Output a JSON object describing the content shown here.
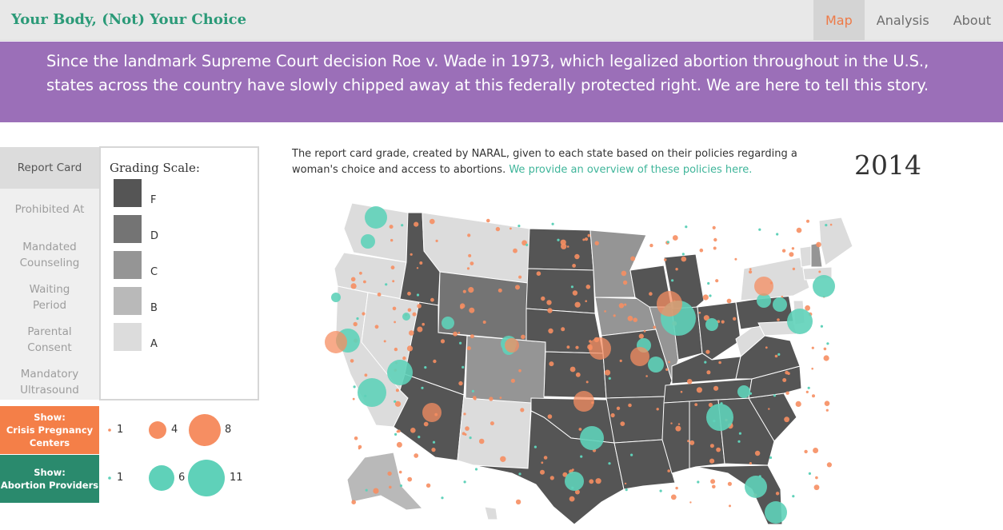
{
  "header": {
    "brand": "Your Body, (Not) Your Choice",
    "nav": [
      {
        "label": "Map",
        "active": true
      },
      {
        "label": "Analysis",
        "active": false
      },
      {
        "label": "About",
        "active": false
      }
    ]
  },
  "banner": {
    "line1": "Since the landmark Supreme Court decision Roe v. Wade in 1973, which legalized abortion throughout in the U.S.,",
    "line2": "states across the country have slowly chipped away at this federally protected right. We are here to tell this story."
  },
  "tabs": [
    {
      "line1": "Report Card",
      "line2": "",
      "active": true
    },
    {
      "line1": "Prohibited At",
      "line2": "",
      "active": false
    },
    {
      "line1": "Mandated",
      "line2": "Counseling",
      "active": false
    },
    {
      "line1": "Waiting",
      "line2": "Period",
      "active": false
    },
    {
      "line1": "Parental",
      "line2": "Consent",
      "active": false
    },
    {
      "line1": "Mandatory",
      "line2": "Ultrasound",
      "active": false
    }
  ],
  "grading_scale": {
    "title": "Grading Scale:",
    "grades": [
      {
        "label": "F",
        "color": "#555555"
      },
      {
        "label": "D",
        "color": "#747474"
      },
      {
        "label": "C",
        "color": "#959595"
      },
      {
        "label": "B",
        "color": "#b9b9b9"
      },
      {
        "label": "A",
        "color": "#dcdcdc"
      }
    ]
  },
  "toggles": {
    "cpc": {
      "line1": "Show:",
      "line2": "Crisis Pregnancy",
      "line3": "Centers",
      "color": "#f47f48"
    },
    "ap": {
      "line1": "Show:",
      "line2": "Abortion Providers",
      "color": "#2a8a6d"
    }
  },
  "size_legend": {
    "cpc": {
      "values": [
        "1",
        "4",
        "8"
      ],
      "color": "#f68e62"
    },
    "ap": {
      "values": [
        "1",
        "6",
        "11"
      ],
      "color": "#5fd1b9"
    }
  },
  "description": {
    "text": "The report card grade, created by NARAL, given to each state based on their policies regarding a woman's choice and access to abortions. ",
    "link": "We provide an overview of these policies here."
  },
  "year": "2014",
  "colors": {
    "brand": "#2b9a78",
    "banner": "#9b6fb8",
    "nav_active": "#ee7a47",
    "link": "#3fb59a"
  }
}
